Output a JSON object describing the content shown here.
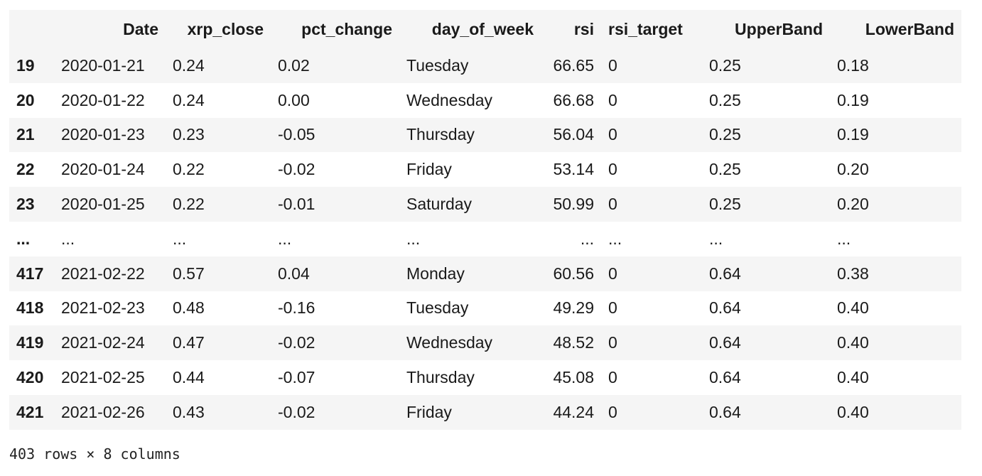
{
  "table": {
    "columns": [
      "",
      "Date",
      "xrp_close",
      "pct_change",
      "day_of_week",
      "rsi",
      "rsi_target",
      "UpperBand",
      "LowerBand"
    ],
    "rows": [
      [
        "19",
        "2020-01-21",
        "0.24",
        "0.02",
        "Tuesday",
        "66.65",
        "0",
        "0.25",
        "0.18"
      ],
      [
        "20",
        "2020-01-22",
        "0.24",
        "0.00",
        "Wednesday",
        "66.68",
        "0",
        "0.25",
        "0.19"
      ],
      [
        "21",
        "2020-01-23",
        "0.23",
        "-0.05",
        "Thursday",
        "56.04",
        "0",
        "0.25",
        "0.19"
      ],
      [
        "22",
        "2020-01-24",
        "0.22",
        "-0.02",
        "Friday",
        "53.14",
        "0",
        "0.25",
        "0.20"
      ],
      [
        "23",
        "2020-01-25",
        "0.22",
        "-0.01",
        "Saturday",
        "50.99",
        "0",
        "0.25",
        "0.20"
      ],
      [
        "...",
        "...",
        "...",
        "...",
        "...",
        "...",
        "...",
        "...",
        "..."
      ],
      [
        "417",
        "2021-02-22",
        "0.57",
        "0.04",
        "Monday",
        "60.56",
        "0",
        "0.64",
        "0.38"
      ],
      [
        "418",
        "2021-02-23",
        "0.48",
        "-0.16",
        "Tuesday",
        "49.29",
        "0",
        "0.64",
        "0.40"
      ],
      [
        "419",
        "2021-02-24",
        "0.47",
        "-0.02",
        "Wednesday",
        "48.52",
        "0",
        "0.64",
        "0.40"
      ],
      [
        "420",
        "2021-02-25",
        "0.44",
        "-0.07",
        "Thursday",
        "45.08",
        "0",
        "0.64",
        "0.40"
      ],
      [
        "421",
        "2021-02-26",
        "0.43",
        "-0.02",
        "Friday",
        "44.24",
        "0",
        "0.64",
        "0.40"
      ]
    ]
  },
  "shape_text": "403 rows × 8 columns"
}
